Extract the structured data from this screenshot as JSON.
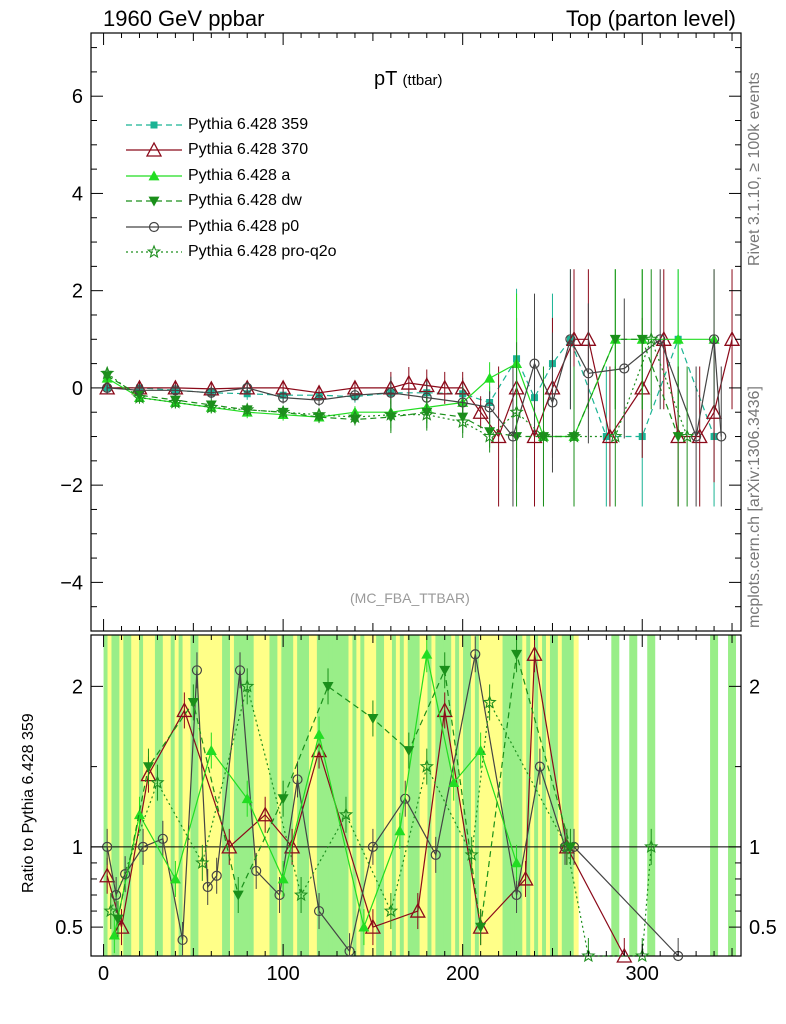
{
  "header": {
    "left": "1960 GeV ppbar",
    "right": "Top (parton level)"
  },
  "title": {
    "main": "pT",
    "sub": "(ttbar)"
  },
  "watermark": "(MC_FBA_TTBAR)",
  "side_texts": {
    "rivet": "Rivet 3.1.10, ≥ 100k events",
    "mcplots": "mcplots.cern.ch [arXiv:1306.3436]"
  },
  "ratio_ylabel": "Ratio to Pythia 6.428 359",
  "colors": {
    "p359": "#1ab394",
    "p370": "#8b0a1a",
    "pa": "#22dd22",
    "pdw": "#1a8f1a",
    "pp0": "#444444",
    "pq2o": "#1f8f1f",
    "band_green": "#99ee88",
    "band_yellow": "#ffff88"
  },
  "chart_data": [
    {
      "type": "line",
      "panel": "main",
      "xlim": [
        -7,
        355
      ],
      "ylim": [
        -5,
        7.3
      ],
      "x_ticks": [
        0,
        100,
        200,
        300
      ],
      "y_ticks": [
        -4,
        -2,
        0,
        2,
        4,
        6
      ],
      "series": [
        {
          "name": "Pythia 6.428 359",
          "key": "p359",
          "marker": "square",
          "dash": "dashed",
          "x": [
            2,
            20,
            40,
            60,
            80,
            100,
            120,
            140,
            160,
            180,
            200,
            215,
            230,
            240,
            250,
            260,
            280,
            300,
            320,
            340
          ],
          "y": [
            0.0,
            0.0,
            -0.05,
            -0.1,
            -0.12,
            -0.15,
            -0.15,
            -0.18,
            -0.1,
            -0.1,
            -0.12,
            -0.3,
            0.6,
            -0.2,
            0.5,
            1.0,
            -1.0,
            -1.0,
            1.0,
            -1.0
          ]
        },
        {
          "name": "Pythia 6.428 370",
          "key": "p370",
          "marker": "triangle-open",
          "dash": "solid",
          "x": [
            2,
            20,
            40,
            60,
            80,
            100,
            120,
            140,
            160,
            170,
            180,
            190,
            200,
            210,
            220,
            230,
            240,
            250,
            262,
            270,
            282,
            300,
            312,
            320,
            332,
            340,
            350
          ],
          "y": [
            0.0,
            0.0,
            0.0,
            -0.02,
            0.0,
            0.0,
            -0.1,
            0.0,
            0.0,
            0.1,
            0.05,
            0.0,
            0.0,
            -0.5,
            -1.0,
            0.0,
            -1.0,
            0.0,
            1.0,
            1.0,
            -1.0,
            0.0,
            1.0,
            -1.0,
            -1.0,
            -0.5,
            1.0
          ]
        },
        {
          "name": "Pythia 6.428 a",
          "key": "pa",
          "marker": "triangle",
          "dash": "solid",
          "x": [
            2,
            20,
            40,
            60,
            80,
            100,
            120,
            140,
            160,
            180,
            200,
            215,
            230,
            245,
            262,
            285,
            300,
            320,
            340
          ],
          "y": [
            0.2,
            -0.2,
            -0.3,
            -0.4,
            -0.5,
            -0.55,
            -0.6,
            -0.5,
            -0.5,
            -0.4,
            -0.3,
            0.2,
            0.5,
            -1.0,
            -1.0,
            1.0,
            1.0,
            1.0,
            1.0
          ]
        },
        {
          "name": "Pythia 6.428 dw",
          "key": "pdw",
          "marker": "triangle-down",
          "dash": "dashed",
          "x": [
            2,
            20,
            40,
            60,
            80,
            100,
            120,
            140,
            160,
            180,
            200,
            215,
            230,
            245,
            262,
            285,
            300,
            320
          ],
          "y": [
            0.25,
            -0.15,
            -0.25,
            -0.35,
            -0.45,
            -0.5,
            -0.6,
            -0.65,
            -0.6,
            -0.5,
            -0.6,
            -0.9,
            -1.0,
            -1.0,
            -1.0,
            1.0,
            1.0,
            -1.0
          ]
        },
        {
          "name": "Pythia 6.428 p0",
          "key": "pp0",
          "marker": "circle-open",
          "dash": "solid",
          "x": [
            2,
            20,
            40,
            60,
            80,
            100,
            120,
            140,
            160,
            180,
            200,
            215,
            228,
            240,
            250,
            260,
            270,
            290,
            310,
            330,
            340,
            344
          ],
          "y": [
            0.0,
            -0.05,
            -0.05,
            -0.1,
            0.0,
            -0.2,
            -0.25,
            -0.15,
            -0.1,
            -0.2,
            -0.3,
            -0.4,
            -1.0,
            0.5,
            -0.3,
            1.0,
            0.3,
            0.4,
            1.0,
            -1.0,
            1.0,
            -1.0
          ]
        },
        {
          "name": "Pythia 6.428 pro-q2o",
          "key": "pq2o",
          "marker": "star-open",
          "dash": "dotted",
          "x": [
            2,
            20,
            40,
            60,
            80,
            100,
            120,
            140,
            160,
            180,
            200,
            215,
            230,
            245,
            262,
            285,
            305,
            325
          ],
          "y": [
            0.3,
            -0.2,
            -0.3,
            -0.4,
            -0.45,
            -0.5,
            -0.55,
            -0.6,
            -0.55,
            -0.55,
            -0.7,
            -1.0,
            -0.5,
            -1.0,
            -1.0,
            -1.0,
            1.0,
            -1.0
          ]
        }
      ]
    },
    {
      "type": "line",
      "panel": "ratio",
      "ylabel": "Ratio to Pythia 6.428 359",
      "xlim": [
        -7,
        355
      ],
      "ylim": [
        0.32,
        2.32
      ],
      "x_ticks": [
        0,
        100,
        200,
        300
      ],
      "y_ticks": [
        0.5,
        1,
        2
      ],
      "reference_y": 1,
      "series": [
        {
          "key": "p370",
          "marker": "triangle-open",
          "dash": "solid",
          "x": [
            2,
            10,
            25,
            45,
            70,
            90,
            105,
            120,
            150,
            175,
            190,
            210,
            235,
            240,
            258,
            290
          ],
          "y": [
            0.82,
            0.5,
            1.45,
            1.85,
            1.0,
            1.2,
            1.0,
            1.6,
            0.5,
            0.6,
            1.85,
            0.5,
            0.8,
            2.2,
            1.0,
            0.32
          ]
        },
        {
          "key": "pp0",
          "marker": "circle-open",
          "dash": "solid",
          "x": [
            2,
            7,
            12,
            22,
            33,
            44,
            52,
            58,
            63,
            76,
            85,
            98,
            108,
            120,
            137,
            150,
            168,
            185,
            207,
            230,
            243,
            257,
            262,
            320
          ],
          "y": [
            1.0,
            0.7,
            0.83,
            1.0,
            1.05,
            0.42,
            2.1,
            0.75,
            0.82,
            2.1,
            0.85,
            0.7,
            1.42,
            0.6,
            0.35,
            1.0,
            1.3,
            0.95,
            2.2,
            0.7,
            1.5,
            1.0,
            1.0,
            0.32
          ]
        },
        {
          "key": "pa",
          "marker": "triangle",
          "dash": "solid",
          "x": [
            6,
            20,
            40,
            60,
            80,
            100,
            120,
            145,
            165,
            180,
            195,
            210,
            230
          ],
          "y": [
            0.45,
            1.2,
            0.8,
            1.6,
            1.3,
            0.8,
            1.7,
            0.5,
            1.1,
            2.2,
            1.4,
            1.6,
            0.9
          ]
        },
        {
          "key": "pdw",
          "marker": "triangle-down",
          "dash": "dashed",
          "x": [
            8,
            25,
            50,
            75,
            100,
            125,
            150,
            170,
            190,
            210,
            230,
            260
          ],
          "y": [
            0.55,
            1.5,
            1.9,
            0.7,
            1.3,
            2.0,
            1.8,
            1.6,
            2.1,
            0.5,
            2.2,
            1.0
          ]
        },
        {
          "key": "pq2o",
          "marker": "star-open",
          "dash": "dotted",
          "x": [
            4,
            30,
            55,
            80,
            110,
            135,
            160,
            180,
            205,
            215,
            258,
            270,
            300,
            305
          ],
          "y": [
            0.6,
            1.4,
            0.9,
            2.0,
            0.7,
            1.2,
            0.6,
            1.5,
            0.95,
            1.9,
            1.0,
            0.32,
            0.32,
            1.0
          ]
        }
      ]
    }
  ]
}
